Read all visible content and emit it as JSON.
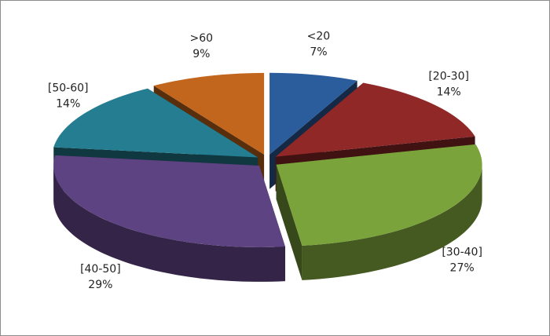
{
  "chart_data": {
    "type": "pie3d",
    "categories": [
      "<20",
      "[20-30]",
      "[30-40]",
      "[40-50]",
      "[50-60]",
      ">60"
    ],
    "values": [
      7,
      14,
      27,
      29,
      14,
      9
    ],
    "value_labels": [
      "7%",
      "14%",
      "27%",
      "29%",
      "14%",
      "9%"
    ],
    "colors": [
      "#2b5c9c",
      "#902828",
      "#7ba33b",
      "#5e4382",
      "#247d90",
      "#c3661d"
    ]
  }
}
